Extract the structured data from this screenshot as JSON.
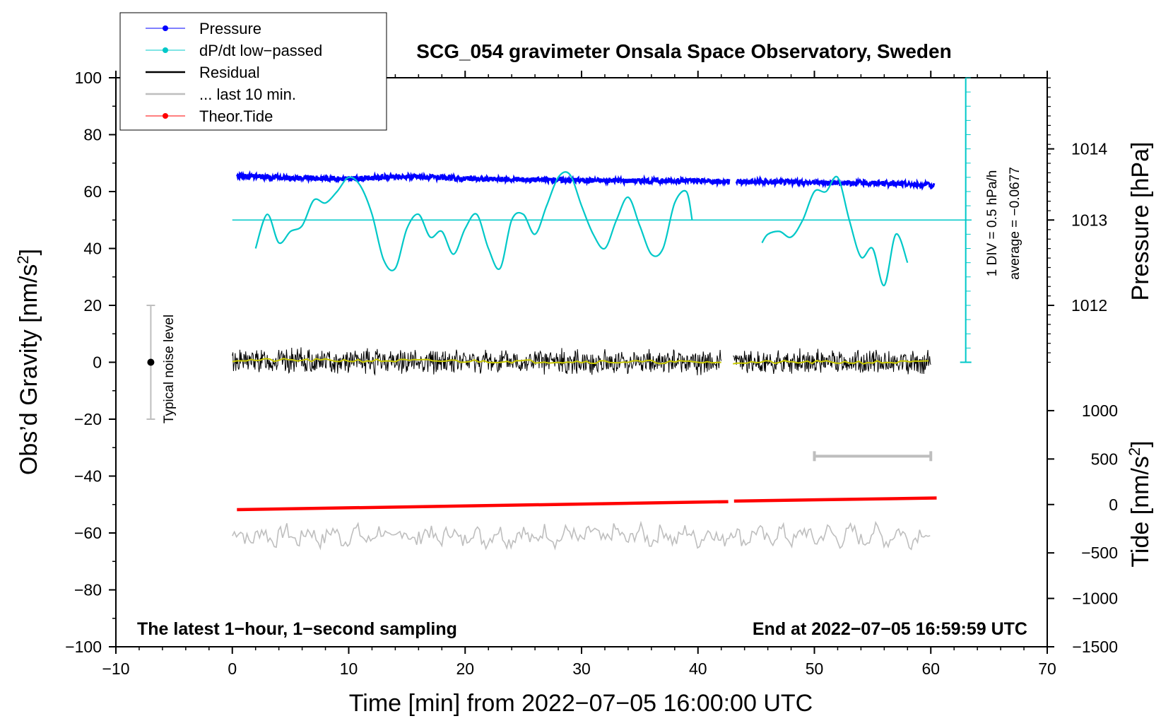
{
  "chart_data": {
    "type": "line",
    "title": "SCG_054 gravimeter Onsala Space Observatory, Sweden",
    "xlabel": "Time [min] from 2022−07−05 16:00:00 UTC",
    "ylabel": "Obs’d Gravity [nm/s",
    "ylabel_sup": "2",
    "ylabel_close": "]",
    "xlim": [
      -10,
      70
    ],
    "ylim": [
      -100,
      100
    ],
    "x_ticks": [
      -10,
      0,
      10,
      20,
      30,
      40,
      50,
      60,
      70
    ],
    "x_tick_labels": [
      "−10",
      "0",
      "10",
      "20",
      "30",
      "40",
      "50",
      "60",
      "70"
    ],
    "y_ticks": [
      -100,
      -80,
      -60,
      -40,
      -20,
      0,
      20,
      40,
      60,
      80,
      100
    ],
    "y_tick_labels": [
      "−100",
      "−80",
      "−60",
      "−40",
      "−20",
      "0",
      "20",
      "40",
      "60",
      "80",
      "100"
    ],
    "right_axis_pressure": {
      "label": "Pressure [hPa]",
      "ticks": [
        {
          "value": 1012,
          "label": "1012",
          "y": 20
        },
        {
          "value": 1013,
          "label": "1013",
          "y": 50
        },
        {
          "value": 1014,
          "label": "1014",
          "y": 75
        }
      ]
    },
    "right_axis_tide": {
      "label": "Tide [nm/s",
      "label_sup": "2",
      "label_close": "]",
      "ticks": [
        {
          "value": 1000,
          "label": "1000",
          "y": -17
        },
        {
          "value": 500,
          "label": "500",
          "y": -34
        },
        {
          "value": 0,
          "label": "0",
          "y": -50
        },
        {
          "value": -500,
          "label": "−500",
          "y": -67
        },
        {
          "value": -1000,
          "label": "−1000",
          "y": -83
        },
        {
          "value": -1500,
          "label": "−1500",
          "y": -100
        }
      ]
    },
    "legend": {
      "position": "top-left",
      "entries": [
        {
          "label": "Pressure",
          "color": "#0000ff",
          "marker": true
        },
        {
          "label": "dP/dt low−passed",
          "color": "#00c8c8",
          "marker": true
        },
        {
          "label": "Residual",
          "color": "#000000",
          "marker": false
        },
        {
          "label": "... last 10 min.",
          "color": "#bebebe",
          "marker": false
        },
        {
          "label": "Theor.Tide",
          "color": "#ff0000",
          "marker": true
        }
      ]
    },
    "series": [
      {
        "name": "Pressure",
        "color": "#0000ff",
        "segments": [
          {
            "x": [
              0.4,
              5,
              10,
              15,
              20,
              25,
              30,
              35,
              40,
              42.7
            ],
            "y": [
              65.5,
              64.8,
              64.5,
              65.3,
              64.5,
              64.2,
              64,
              63.8,
              63.8,
              63.5
            ]
          },
          {
            "x": [
              43.3,
              45,
              50,
              55,
              60.3
            ],
            "y": [
              63.5,
              63.5,
              63.2,
              63.0,
              62.2
            ]
          }
        ]
      },
      {
        "name": "dP/dt low-passed",
        "color": "#00c8c8",
        "segments": [
          {
            "x": [
              2,
              3,
              4,
              5,
              6,
              7,
              8,
              9,
              10,
              11,
              12,
              13,
              14,
              15,
              16,
              17,
              18,
              19,
              20,
              21,
              22,
              23,
              24,
              25,
              26,
              27,
              28,
              29,
              30,
              31,
              32,
              33,
              34,
              35,
              36,
              37,
              38,
              39,
              39.5
            ],
            "y": [
              40,
              52,
              42,
              46,
              48,
              57,
              56,
              60,
              65,
              62,
              52,
              36,
              33,
              47,
              52,
              44,
              46,
              38,
              47,
              52,
              40,
              33,
              50,
              52,
              45,
              55,
              65,
              66,
              55,
              45,
              40,
              50,
              58,
              48,
              38,
              40,
              56,
              60,
              50
            ]
          },
          {
            "x": [
              45.5,
              46,
              47,
              48,
              49,
              50,
              51,
              52,
              53,
              54,
              55,
              56,
              57,
              58
            ],
            "y": [
              42,
              45,
              46,
              44,
              50,
              60,
              60,
              65,
              50,
              37,
              40,
              27,
              45,
              35
            ]
          }
        ],
        "zero_line": 50
      },
      {
        "name": "Residual",
        "color": "#000000",
        "band": [
          -5,
          5
        ],
        "segments": [
          {
            "x": [
              0,
              42
            ],
            "y": [
              0.5,
              0
            ]
          },
          {
            "x": [
              43,
              60
            ],
            "y": [
              0,
              0
            ]
          }
        ]
      },
      {
        "name": "Residual smoothed",
        "color": "#c8c800",
        "segments": [
          {
            "x": [
              0,
              42
            ],
            "y": [
              0.8,
              0
            ]
          },
          {
            "x": [
              43,
              60
            ],
            "y": [
              0,
              0
            ]
          }
        ]
      },
      {
        "name": "Theor.Tide",
        "color": "#ff0000",
        "segments": [
          {
            "x": [
              0.4,
              42.6
            ],
            "y": [
              -51.8,
              -49
            ]
          },
          {
            "x": [
              43.1,
              60.5
            ],
            "y": [
              -48.8,
              -47.7
            ]
          }
        ]
      },
      {
        "name": "... last 10 min.",
        "color": "#bebebe",
        "center": -61,
        "amplitude": 4,
        "x_range": [
          0,
          60
        ]
      }
    ],
    "noise_bar": {
      "x": -7,
      "y_min": -20,
      "y_max": 20,
      "center": 0,
      "label": "Typical noise level"
    },
    "last10_marker": {
      "x_start": 50,
      "x_end": 60,
      "y": -33
    },
    "pressure_scale": {
      "x": 63,
      "y_min": 0,
      "y_max": 100,
      "label1": "1 DIV = 0.5 hPa/h",
      "label2": "average = −0.0677"
    },
    "annotations": {
      "bottom_left": "The latest 1−hour, 1−second sampling",
      "bottom_right": "End at 2022−07−05 16:59:59 UTC"
    }
  }
}
